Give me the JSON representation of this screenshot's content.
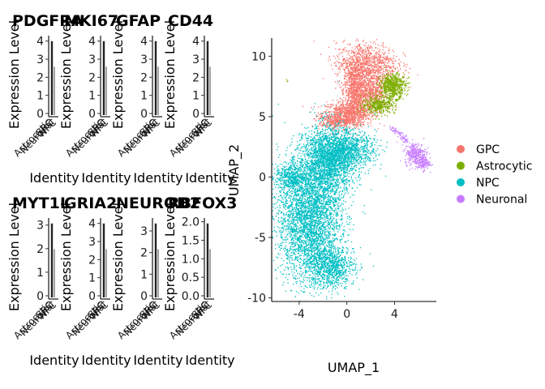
{
  "violin_panels": [
    {
      "title": "PDGFRA",
      "ylabel": "Expression Level",
      "xlabel": "Identity",
      "yticks": [
        "0",
        "1",
        "2",
        "3",
        "4"
      ],
      "ymax": 4.3,
      "xticks": [
        "Astrocytic",
        "GPC",
        "Neuronal",
        "NPC"
      ]
    },
    {
      "title": "MKI67",
      "ylabel": "Expression Level",
      "xlabel": "Identity",
      "yticks": [
        "0",
        "1",
        "2",
        "3",
        "4"
      ],
      "ymax": 4.3,
      "xticks": [
        "Astrocytic",
        "GPC",
        "Neuronal",
        "NPC"
      ]
    },
    {
      "title": "GFAP",
      "ylabel": "Expression Level",
      "xlabel": "Identity",
      "yticks": [
        "0",
        "1",
        "2",
        "3",
        "4"
      ],
      "ymax": 4.3,
      "xticks": [
        "Astrocytic",
        "GPC",
        "Neuronal",
        "NPC"
      ]
    },
    {
      "title": "CD44",
      "ylabel": "Expression Level",
      "xlabel": "Identity",
      "yticks": [
        "0",
        "1",
        "2",
        "3",
        "4"
      ],
      "ymax": 4.3,
      "xticks": [
        "Astrocytic",
        "GPC",
        "Neuronal",
        "NPC"
      ]
    },
    {
      "title": "MYT1L",
      "ylabel": "Expression Level",
      "xlabel": "Identity",
      "yticks": [
        "0",
        "1",
        "2",
        "3"
      ],
      "ymax": 3.3,
      "xticks": [
        "Astrocytic",
        "GPC",
        "Neuronal",
        "NPC"
      ]
    },
    {
      "title": "GRIA2",
      "ylabel": "Expression Level",
      "xlabel": "Identity",
      "yticks": [
        "0",
        "1",
        "2",
        "3",
        "4"
      ],
      "ymax": 4.3,
      "xticks": [
        "Astrocytic",
        "GPC",
        "Neuronal",
        "NPC"
      ]
    },
    {
      "title": "NEUROD2",
      "ylabel": "Expression Level",
      "xlabel": "Identity",
      "yticks": [
        "0",
        "1",
        "2",
        "3"
      ],
      "ymax": 3.6,
      "xticks": [
        "Astrocytic",
        "GPC",
        "Neuronal",
        "NPC"
      ]
    },
    {
      "title": "RBFOX3",
      "ylabel": "Expression Level",
      "xlabel": "Identity",
      "yticks": [
        "0.0",
        "0.5",
        "1.0",
        "1.5",
        "2.0"
      ],
      "ymax": 2.1,
      "xticks": [
        "Astrocytic",
        "GPC",
        "Neuronal",
        "NPC"
      ]
    }
  ],
  "chart_data": {
    "type": "scatter",
    "xlabel": "UMAP_1",
    "ylabel": "UMAP_2",
    "xlim": [
      -6.3,
      7.5
    ],
    "ylim": [
      -10.3,
      11.5
    ],
    "xticks": [
      -4,
      0,
      4
    ],
    "yticks": [
      -10,
      -5,
      0,
      5,
      10
    ],
    "grid": false,
    "legend_position": "right",
    "series": [
      {
        "name": "GPC",
        "color": "#F8766D",
        "clusters": [
          {
            "cx": 0.1,
            "cy": 5.3,
            "sx": 1.1,
            "sy": 0.5,
            "n": 800
          },
          {
            "cx": 0.7,
            "cy": 7.2,
            "sx": 0.45,
            "sy": 1.2,
            "n": 900
          },
          {
            "cx": 1.6,
            "cy": 9.4,
            "sx": 1.3,
            "sy": 0.9,
            "n": 1000
          },
          {
            "cx": 2.2,
            "cy": 7.0,
            "sx": 0.6,
            "sy": 0.7,
            "n": 500
          },
          {
            "cx": -1.0,
            "cy": 4.6,
            "sx": 0.7,
            "sy": 0.35,
            "n": 300
          }
        ]
      },
      {
        "name": "Astrocytic",
        "color": "#7CAE00",
        "clusters": [
          {
            "cx": 3.8,
            "cy": 7.6,
            "sx": 0.55,
            "sy": 0.5,
            "n": 600
          },
          {
            "cx": 2.6,
            "cy": 6.0,
            "sx": 0.7,
            "sy": 0.35,
            "n": 400
          }
        ],
        "extra_points": [
          [
            -5.0,
            8.0
          ],
          [
            -5.1,
            8.1
          ],
          [
            -5.05,
            7.95
          ]
        ]
      },
      {
        "name": "NPC",
        "color": "#00BFC4",
        "clusters": [
          {
            "cx": -3.2,
            "cy": -3.2,
            "sx": 1.3,
            "sy": 2.6,
            "n": 3500
          },
          {
            "cx": -1.5,
            "cy": 1.4,
            "sx": 1.1,
            "sy": 1.4,
            "n": 2000
          },
          {
            "cx": -1.4,
            "cy": -7.4,
            "sx": 1.0,
            "sy": 0.9,
            "n": 900
          },
          {
            "cx": 0.0,
            "cy": 2.3,
            "sx": 1.2,
            "sy": 0.7,
            "n": 900
          },
          {
            "cx": -4.8,
            "cy": 0.0,
            "sx": 0.6,
            "sy": 0.6,
            "n": 400
          }
        ]
      },
      {
        "name": "Neuronal",
        "color": "#C77CFF",
        "clusters": [
          {
            "cx": 5.7,
            "cy": 2.0,
            "sx": 0.45,
            "sy": 0.45,
            "n": 300
          },
          {
            "cx": 6.3,
            "cy": 1.2,
            "sx": 0.3,
            "sy": 0.3,
            "n": 150
          }
        ],
        "trail": [
          [
            3.5,
            4.2
          ],
          [
            4.4,
            3.6
          ],
          [
            5.0,
            3.0
          ]
        ]
      }
    ]
  },
  "legend": {
    "items": [
      {
        "label": "GPC",
        "color": "#F8766D"
      },
      {
        "label": "Astrocytic",
        "color": "#7CAE00"
      },
      {
        "label": "NPC",
        "color": "#00BFC4"
      },
      {
        "label": "Neuronal",
        "color": "#C77CFF"
      }
    ]
  }
}
